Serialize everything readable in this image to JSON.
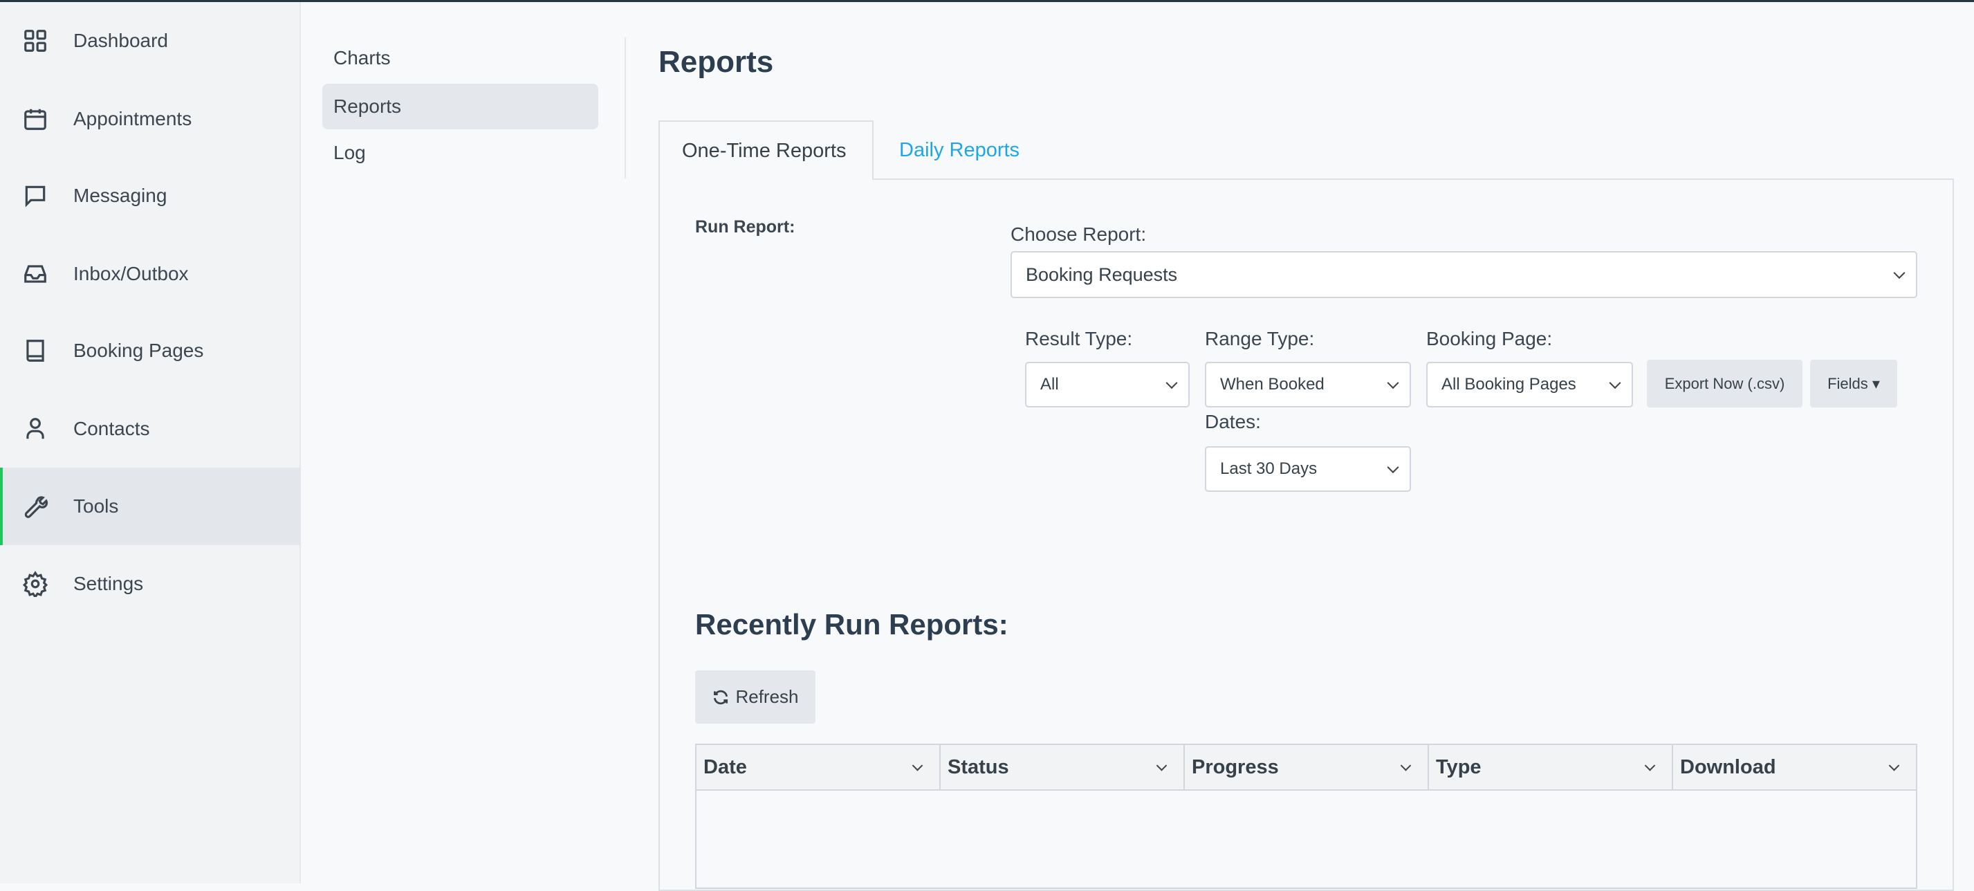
{
  "sidebar": {
    "items": [
      {
        "label": "Dashboard",
        "icon": "grid-icon"
      },
      {
        "label": "Appointments",
        "icon": "calendar-icon"
      },
      {
        "label": "Messaging",
        "icon": "chat-icon"
      },
      {
        "label": "Inbox/Outbox",
        "icon": "inbox-icon"
      },
      {
        "label": "Booking Pages",
        "icon": "book-icon"
      },
      {
        "label": "Contacts",
        "icon": "user-icon"
      },
      {
        "label": "Tools",
        "icon": "wrench-icon",
        "active": true
      },
      {
        "label": "Settings",
        "icon": "gear-icon"
      }
    ],
    "accent": "#22c55e"
  },
  "subnav": {
    "items": [
      {
        "label": "Charts"
      },
      {
        "label": "Reports",
        "active": true
      },
      {
        "label": "Log"
      }
    ]
  },
  "page": {
    "title": "Reports"
  },
  "tabs": [
    {
      "label": "One-Time Reports",
      "active": true
    },
    {
      "label": "Daily Reports"
    }
  ],
  "form": {
    "run_report_label": "Run Report:",
    "choose_report_label": "Choose Report:",
    "choose_report_value": "Booking Requests",
    "result_type_label": "Result Type:",
    "result_type_value": "All",
    "range_type_label": "Range Type:",
    "range_type_value": "When Booked",
    "booking_page_label": "Booking Page:",
    "booking_page_value": "All Booking Pages",
    "dates_label": "Dates:",
    "dates_value": "Last 30 Days",
    "export_label": "Export Now (.csv)",
    "fields_label": "Fields ▾"
  },
  "recent": {
    "title": "Recently Run Reports:",
    "refresh_label": "Refresh",
    "columns": [
      "Date",
      "Status",
      "Progress",
      "Type",
      "Download"
    ]
  },
  "colors": {
    "link": "#1ea7e8",
    "text": "#36414a"
  }
}
